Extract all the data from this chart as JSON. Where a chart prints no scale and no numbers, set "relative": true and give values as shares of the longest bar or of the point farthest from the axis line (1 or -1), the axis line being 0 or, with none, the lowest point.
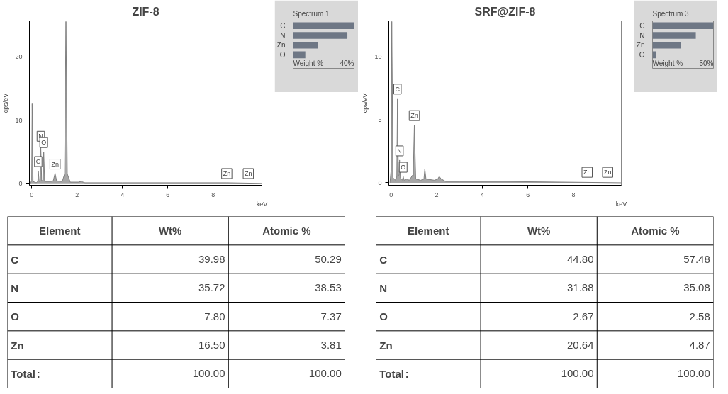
{
  "chart_data": [
    {
      "type": "area",
      "title": "ZIF-8",
      "xlabel": "keV",
      "ylabel": "cps/eV",
      "xlim": [
        -0.1,
        10.15
      ],
      "ylim": [
        -0.3,
        25.7
      ],
      "xticks": [
        0,
        2,
        4,
        6,
        8
      ],
      "yticks": [
        0,
        10,
        20
      ],
      "grid": false,
      "x": [
        -0.05,
        0.0,
        0.02,
        0.06,
        0.2,
        0.27,
        0.29,
        0.33,
        0.37,
        0.4,
        0.44,
        0.5,
        0.53,
        0.57,
        0.8,
        0.95,
        1.03,
        1.1,
        1.35,
        1.45,
        1.51,
        1.57,
        1.7,
        2.05,
        2.18,
        2.35,
        4,
        8.6,
        10.15
      ],
      "series": [
        {
          "color": "#a6a6a6",
          "values": [
            0,
            0.5,
            12.6,
            0.3,
            0.1,
            0.3,
            2.0,
            0.3,
            0.4,
            6.0,
            0.4,
            0.5,
            5.0,
            0.3,
            0.3,
            0.4,
            1.6,
            0.4,
            0.3,
            1.5,
            25.6,
            1.5,
            0.2,
            0.2,
            0.3,
            0.1,
            0.1,
            0.1,
            0.0
          ]
        }
      ],
      "annotations": [
        {
          "text": "C",
          "x": 0.29,
          "y": 2.0
        },
        {
          "text": "N",
          "x": 0.4,
          "y": 6.0
        },
        {
          "text": "O",
          "x": 0.53,
          "y": 5.0
        },
        {
          "text": "Zn",
          "x": 1.03,
          "y": 1.6
        },
        {
          "text": "Zn",
          "x": 8.6,
          "y": 0.1
        },
        {
          "text": "Zn",
          "x": 9.55,
          "y": 0.1
        }
      ]
    },
    {
      "type": "bar",
      "orientation": "horizontal",
      "relative": true,
      "title": "Spectrum 1",
      "categories": [
        "C",
        "N",
        "Zn",
        "O"
      ],
      "values": [
        1,
        0.89,
        0.41,
        0.2
      ],
      "color": "#6e7785",
      "annotations": [
        "Weight %",
        "40%"
      ]
    },
    {
      "type": "area",
      "title": "SRF@ZIF-8",
      "xlabel": "keV",
      "ylabel": "cps/eV",
      "xlim": [
        -0.1,
        10.1
      ],
      "ylim": [
        -0.2,
        12.85
      ],
      "xticks": [
        0,
        2,
        4,
        6,
        8
      ],
      "yticks": [
        0,
        5,
        10
      ],
      "grid": false,
      "x": [
        -0.05,
        0.0,
        0.03,
        0.08,
        0.2,
        0.25,
        0.28,
        0.32,
        0.35,
        0.37,
        0.41,
        0.5,
        0.53,
        0.57,
        0.69,
        0.8,
        0.94,
        0.97,
        1.02,
        1.08,
        1.3,
        1.44,
        1.48,
        1.53,
        1.9,
        2.05,
        2.11,
        2.2,
        2.4,
        3,
        5,
        10.1
      ],
      "series": [
        {
          "color": "#a6a6a6",
          "values": [
            0,
            1,
            12.8,
            0.4,
            0.2,
            0.5,
            6.7,
            0.6,
            0.6,
            1.8,
            0.4,
            0.2,
            0.5,
            0.2,
            0.3,
            0.2,
            0.6,
            0.5,
            4.6,
            0.3,
            0.2,
            0.3,
            1.1,
            0.3,
            0.2,
            0.3,
            0.5,
            0.3,
            0.1,
            0.1,
            0.1,
            0.0
          ]
        }
      ],
      "annotations": [
        {
          "text": "C",
          "x": 0.28,
          "y": 6.7
        },
        {
          "text": "Zn",
          "x": 1.02,
          "y": 4.6
        },
        {
          "text": "N",
          "x": 0.37,
          "y": 1.8
        },
        {
          "text": "O",
          "x": 0.53,
          "y": 0.5
        },
        {
          "text": "Zn",
          "x": 8.6,
          "y": 0.1
        },
        {
          "text": "Zn",
          "x": 9.5,
          "y": 0.1
        }
      ]
    },
    {
      "type": "bar",
      "orientation": "horizontal",
      "relative": true,
      "title": "Spectrum 3",
      "categories": [
        "C",
        "N",
        "Zn",
        "O"
      ],
      "values": [
        1,
        0.71,
        0.46,
        0.06
      ],
      "color": "#6e7785",
      "annotations": [
        "Weight %",
        "50%"
      ]
    },
    {
      "type": "other",
      "ylabel": "Element",
      "categories": [
        "C",
        "N",
        "O",
        "Zn",
        "Total"
      ],
      "annotations": [
        ":"
      ],
      "series": [
        {
          "name": "Wt%",
          "values": [
            39.98,
            35.72,
            7.8,
            16.5,
            100
          ],
          "value_labels": [
            "39.98",
            "35.72",
            "7.80",
            "16.50",
            "100.00"
          ]
        },
        {
          "name": "Atomic %",
          "values": [
            50.29,
            38.53,
            7.37,
            3.81,
            100
          ],
          "value_labels": [
            "50.29",
            "38.53",
            "7.37",
            "3.81",
            "100.00"
          ]
        }
      ]
    },
    {
      "type": "other",
      "ylabel": "Element",
      "categories": [
        "C",
        "N",
        "O",
        "Zn",
        "Total"
      ],
      "annotations": [
        ":"
      ],
      "series": [
        {
          "name": "Wt%",
          "values": [
            44.8,
            31.88,
            2.67,
            20.64,
            100
          ],
          "value_labels": [
            "44.80",
            "31.88",
            "2.67",
            "20.64",
            "100.00"
          ]
        },
        {
          "name": "Atomic %",
          "values": [
            57.48,
            35.08,
            2.58,
            4.87,
            100
          ],
          "value_labels": [
            "57.48",
            "35.08",
            "2.58",
            "4.87",
            "100.00"
          ]
        }
      ]
    }
  ]
}
